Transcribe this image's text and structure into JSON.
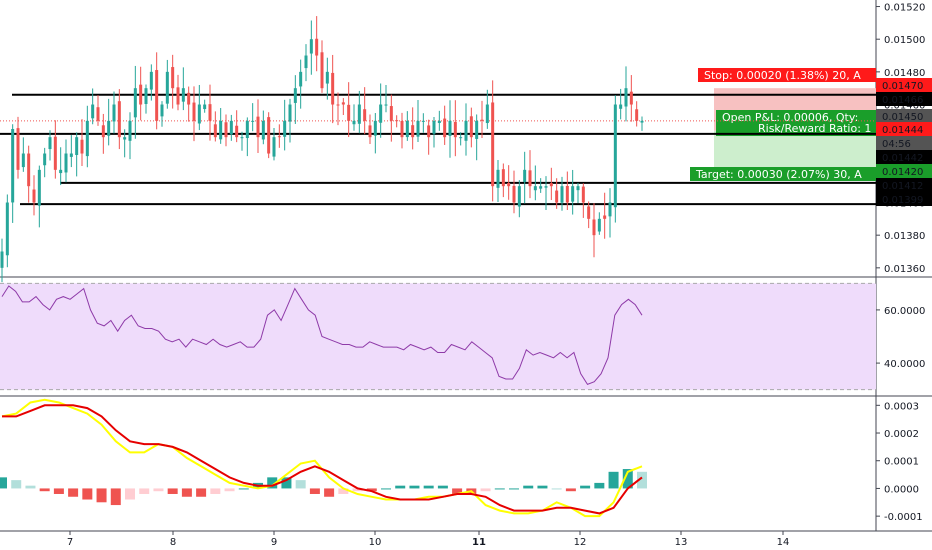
{
  "colors": {
    "up": "#26a69a",
    "down": "#ef5350",
    "stop_box": "#ff1a1a",
    "target_box": "#1a9e2a",
    "pl_box": "#1a9e2a",
    "price_box": "#545454",
    "black_box": "#000000",
    "rsi_line": "#8e3aa8",
    "rsi_band": "#efdcfb",
    "macd_line": "#ffff00",
    "signal_line": "#e60000",
    "hist_up_strong": "#26a69a",
    "hist_up_weak": "#b2dfdb",
    "hist_down_strong": "#ef5350",
    "hist_down_weak": "#ffcdd2"
  },
  "price_axis": {
    "ticks": [
      "0.01520",
      "0.01500",
      "0.01480",
      "0.01460",
      "0.01440",
      "0.01420",
      "0.01400",
      "0.01380",
      "0.01360"
    ]
  },
  "time_axis": {
    "ticks": [
      "7",
      "8",
      "9",
      "10",
      "11",
      "12",
      "13",
      "14"
    ]
  },
  "position": {
    "stop_label": "Stop: 0.00020 (1.38%) 20, A",
    "target_label": "Target: 0.00030 (2.07%) 30, A",
    "pl_label": "Open P&L: 0.00006, Qty:",
    "rr_label": "Risk/Reward Ratio: 1"
  },
  "price_badges": {
    "stop_price": "0.01470",
    "level_1466": "0.01466",
    "current": "0.01450",
    "entry": "0.01444",
    "countdown": "04:56",
    "level_1442": "0.01442",
    "target_price": "0.01420",
    "level_1412": "0.01412",
    "level_1399": "0.01399"
  },
  "rsi_axis": {
    "ticks": [
      "60.0000",
      "40.0000"
    ]
  },
  "macd_axis": {
    "ticks": [
      "0.0003",
      "0.0002",
      "0.0001",
      "0.0000",
      "-0.0001"
    ]
  },
  "chart_data": [
    {
      "type": "candlestick",
      "price_ylim": [
        0.01355,
        0.01524
      ],
      "horizontal_levels": [
        0.01466,
        0.01442,
        0.01412,
        0.01399
      ],
      "position": {
        "entry": 0.01444,
        "stop": 0.0147,
        "target": 0.0142
      },
      "x_ticks": [
        "7",
        "8",
        "9",
        "10",
        "11",
        "12",
        "13",
        "14"
      ],
      "close": [
        0.0137,
        0.014,
        0.01445,
        0.0142,
        0.0143,
        0.0141,
        0.014,
        0.0142,
        0.0143,
        0.0144,
        0.0142,
        0.0142,
        0.0143,
        0.0143,
        0.0144,
        0.0143,
        0.0145,
        0.0146,
        0.0145,
        0.0144,
        0.0145,
        0.0146,
        0.0144,
        0.0144,
        0.0145,
        0.0147,
        0.0146,
        0.0147,
        0.0148,
        0.0145,
        0.0146,
        0.0148,
        0.0147,
        0.0146,
        0.0147,
        0.0146,
        0.0145,
        0.0146,
        0.0146,
        0.0145,
        0.0144,
        0.0145,
        0.0144,
        0.0145,
        0.0144,
        0.0144,
        0.0145,
        0.0145,
        0.0144,
        0.0145,
        0.0143,
        0.0144,
        0.0144,
        0.0145,
        0.0146,
        0.0147,
        0.0148,
        0.0149,
        0.015,
        0.0149,
        0.0147,
        0.0148,
        0.0146,
        0.0146,
        0.0146,
        0.0145,
        0.0145,
        0.0146,
        0.0145,
        0.0144,
        0.0145,
        0.0146,
        0.0146,
        0.0145,
        0.0145,
        0.0144,
        0.0145,
        0.0144,
        0.0145,
        0.0145,
        0.0144,
        0.0145,
        0.0145,
        0.0144,
        0.0145,
        0.0144,
        0.0144,
        0.0145,
        0.0144,
        0.0145,
        0.0145,
        0.0146,
        0.0141,
        0.0142,
        0.0141,
        0.0141,
        0.014,
        0.0141,
        0.0142,
        0.0141,
        0.0141,
        0.0141,
        0.0141,
        0.0141,
        0.014,
        0.0141,
        0.014,
        0.0141,
        0.0141,
        0.014,
        0.0139,
        0.0138,
        0.0139,
        0.0139,
        0.014,
        0.0146,
        0.0146,
        0.0147,
        0.0146,
        0.0145,
        0.0145
      ],
      "rsi": {
        "ylim": [
          28,
          72
        ],
        "band": [
          30,
          70
        ],
        "ticks": [
          60,
          40
        ],
        "values": [
          65,
          69,
          67,
          63,
          63,
          65,
          62,
          60,
          64,
          65,
          64,
          66,
          68,
          60,
          55,
          54,
          56,
          52,
          56,
          58,
          54,
          53,
          53,
          52,
          49,
          48,
          49,
          46,
          49,
          48,
          47,
          49,
          47,
          46,
          47,
          48,
          46,
          46,
          49,
          58,
          60,
          56,
          62,
          68,
          64,
          60,
          58,
          50,
          49,
          48,
          47,
          47,
          46,
          46,
          48,
          47,
          46,
          46,
          46,
          45,
          47,
          46,
          45,
          46,
          44,
          44,
          47,
          46,
          45,
          48,
          46,
          44,
          42,
          35,
          34,
          34,
          38,
          45,
          43,
          44,
          43,
          42,
          44,
          42,
          44,
          36,
          32,
          33,
          36,
          42,
          58,
          62,
          64,
          62,
          58
        ]
      },
      "macd": {
        "ylim": [
          -0.00015,
          0.00033
        ],
        "ticks": [
          0.0003,
          0.0002,
          0.0001,
          0.0,
          -0.0001
        ],
        "macd": [
          0.00026,
          0.00027,
          0.00031,
          0.00032,
          0.00031,
          0.00029,
          0.00027,
          0.00023,
          0.00017,
          0.00013,
          0.00013,
          0.00016,
          0.00015,
          0.00011,
          8e-05,
          5e-05,
          2e-05,
          1e-05,
          0.0,
          1e-05,
          5e-05,
          9e-05,
          0.0001,
          4e-05,
          0.0,
          -2e-05,
          -3e-05,
          -4e-05,
          -4e-05,
          -4e-05,
          -3e-05,
          -3e-05,
          -2e-05,
          -1e-05,
          -6e-05,
          -8e-05,
          -9e-05,
          -9e-05,
          -8e-05,
          -5e-05,
          -7e-05,
          -0.0001,
          -0.0001,
          -5e-05,
          6e-05,
          8e-05
        ],
        "signal": [
          0.00026,
          0.00026,
          0.00028,
          0.0003,
          0.0003,
          0.0003,
          0.00029,
          0.00026,
          0.00021,
          0.00017,
          0.00016,
          0.00016,
          0.00015,
          0.00013,
          0.0001,
          7e-05,
          4e-05,
          2e-05,
          1e-05,
          1e-05,
          3e-05,
          6e-05,
          8e-05,
          6e-05,
          3e-05,
          0.0,
          -1e-05,
          -3e-05,
          -4e-05,
          -4e-05,
          -4e-05,
          -3e-05,
          -2e-05,
          -2e-05,
          -3e-05,
          -6e-05,
          -8e-05,
          -8e-05,
          -8e-05,
          -7e-05,
          -7e-05,
          -8e-05,
          -9e-05,
          -7e-05,
          0.0,
          4e-05
        ],
        "histogram": [
          4e-05,
          3e-05,
          1e-05,
          -1e-05,
          -2e-05,
          -3e-05,
          -4e-05,
          -5e-05,
          -6e-05,
          -4e-05,
          -2e-05,
          -1e-05,
          -2e-05,
          -3e-05,
          -3e-05,
          -2e-05,
          -1e-05,
          0.0,
          2e-05,
          4e-05,
          4e-05,
          3e-05,
          -2e-05,
          -3e-05,
          -2e-05,
          -1e-05,
          -1e-05,
          0.0,
          1e-05,
          1e-05,
          1e-05,
          1e-05,
          -2e-05,
          -2e-05,
          -1e-05,
          0.0,
          0.0,
          1e-05,
          1e-05,
          0.0,
          -1e-05,
          1e-05,
          2e-05,
          6e-05,
          7e-05,
          6e-05
        ]
      }
    }
  ]
}
